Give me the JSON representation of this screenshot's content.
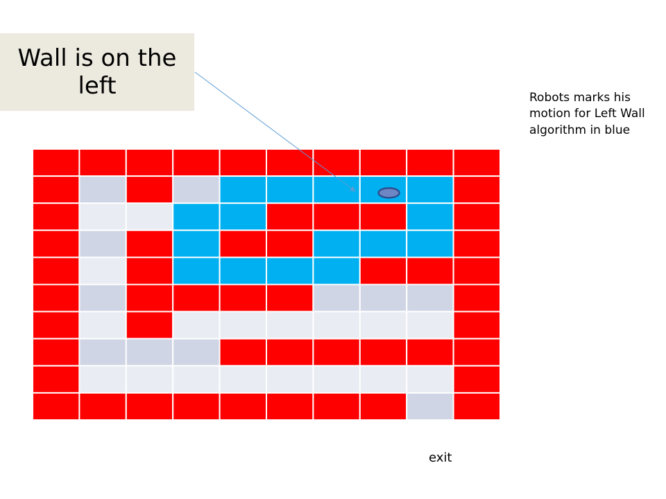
{
  "callout": {
    "text": "Wall is on the left"
  },
  "side_note": {
    "text": "Robots marks his motion for Left Wall algorithm in blue"
  },
  "exit_label": "exit",
  "colors": {
    "wall": "#ff0000",
    "path": "#00b0f0",
    "open_dark": "#cfd5e4",
    "open_light": "#e9ecf3",
    "robot_fill": "#6f86c4",
    "robot_stroke": "#2f4f8f",
    "arrow": "#5b9bd5"
  },
  "maze": {
    "legend": {
      "W": "wall",
      "B": "robot-path",
      "D": "open-dark",
      "L": "open-light"
    },
    "rows": [
      "WWWWWWWWWW",
      "WDWDBBBBBW",
      "WLLBBWWWBW",
      "WDWBWWBBBW",
      "WLWBBBBWWW",
      "WDWWWWDDDW",
      "WLWLLLLLLW",
      "WDDDWWWWWW",
      "WLLLLLLLLW",
      "WWWWWWWWDW"
    ],
    "robot_cell": {
      "row": 1,
      "col": 7
    }
  }
}
